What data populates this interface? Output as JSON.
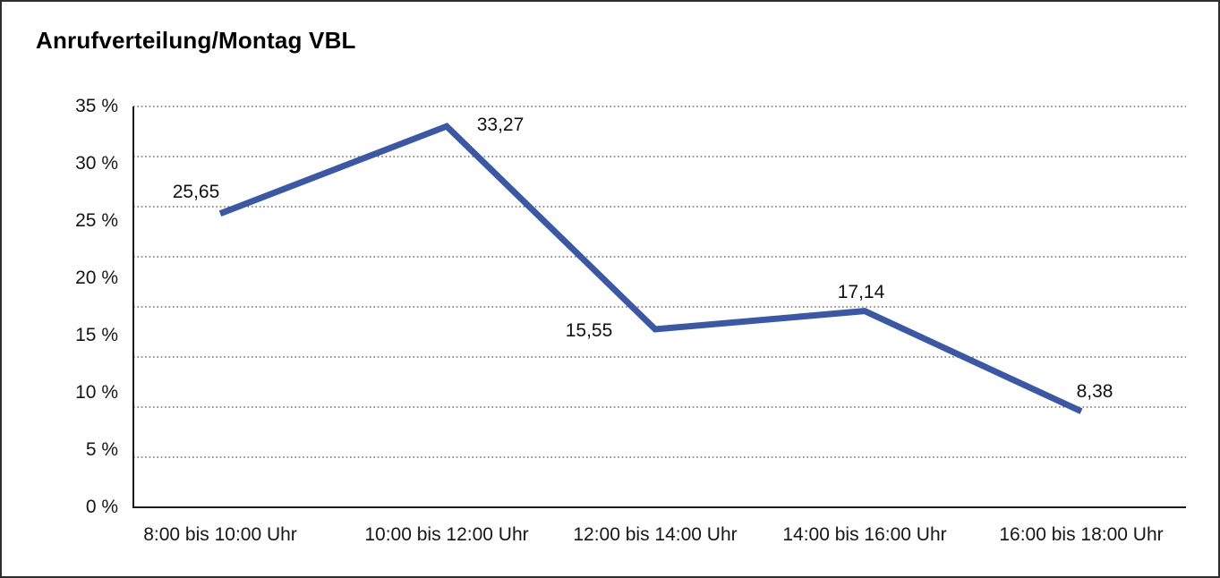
{
  "chart_title": "Anrufverteilung/Montag VBL",
  "chart_data": {
    "type": "line",
    "title": "Anrufverteilung/Montag VBL",
    "categories": [
      "8:00 bis 10:00 Uhr",
      "10:00 bis 12:00 Uhr",
      "12:00 bis 14:00 Uhr",
      "14:00 bis 16:00 Uhr",
      "16:00 bis 18:00 Uhr"
    ],
    "values": [
      25.65,
      33.27,
      15.55,
      17.14,
      8.38
    ],
    "value_labels": [
      "25,65",
      "33,27",
      "15,55",
      "17,14",
      "8,38"
    ],
    "y_tick_labels": [
      "35 %",
      "30 %",
      "25 %",
      "20 %",
      "15 %",
      "10 %",
      "5 %",
      "0 %"
    ],
    "y_tick_values": [
      35,
      30,
      25,
      20,
      15,
      10,
      5,
      0
    ],
    "ylim": [
      0,
      35
    ],
    "xlabel": "",
    "ylabel": "",
    "legend": "none",
    "grid": "horizontal-dotted",
    "gridline_divisions": 8,
    "line_color": "#3a58a5",
    "axis_color": "#1a1a1a",
    "gridline_color": "#555555",
    "decimal_separator": ","
  }
}
